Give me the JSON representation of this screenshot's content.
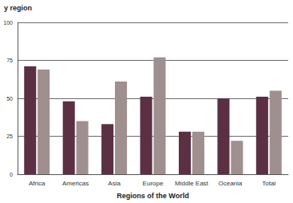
{
  "chart_data": {
    "type": "bar",
    "title": "y region",
    "x_label": "Regions of the World",
    "categories": [
      "Africa",
      "Americas",
      "Asia",
      "Europe",
      "Middle East",
      "Oceania",
      "Total"
    ],
    "series": [
      {
        "color": "#5b3043",
        "values": [
          71,
          48,
          33,
          51,
          28,
          50,
          51
        ]
      },
      {
        "color": "#a08f8f",
        "values": [
          69,
          35,
          61,
          77,
          28,
          22,
          55
        ]
      }
    ],
    "ylim": [
      0,
      100
    ],
    "yticks": [
      0,
      25,
      50,
      75,
      100
    ],
    "grid": true
  }
}
